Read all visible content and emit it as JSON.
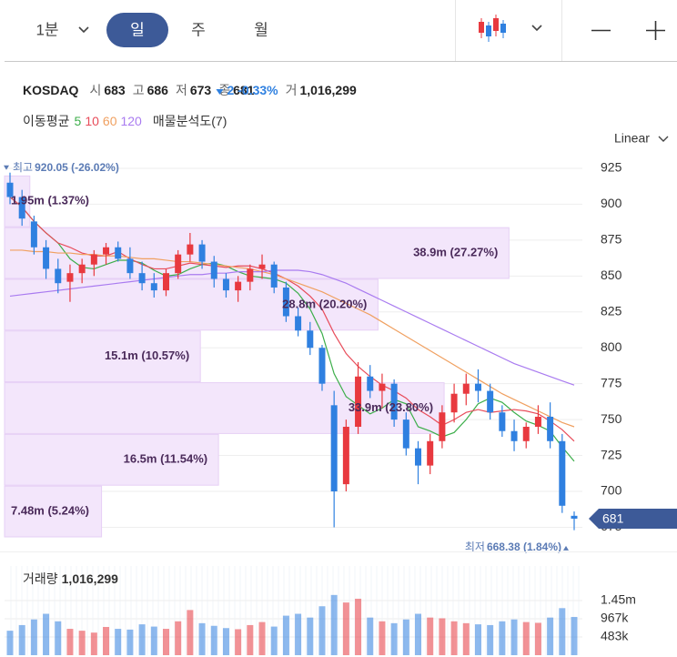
{
  "toolbar": {
    "intervals": [
      "1분",
      "일",
      "주",
      "월"
    ],
    "selected": 1
  },
  "quote": {
    "name": "KOSDAQ",
    "items": [
      {
        "label": "시",
        "value": 683
      },
      {
        "label": "고",
        "value": 686
      },
      {
        "label": "저",
        "value": 673
      },
      {
        "label": "종",
        "value": 681
      }
    ],
    "change": 2,
    "change_pct": "-0.33%",
    "volume_label": "거",
    "volume": "1,016,299"
  },
  "chart_data": {
    "type": "candlestick",
    "ylim": [
      668,
      935
    ],
    "yticks": [
      675,
      700,
      725,
      750,
      775,
      800,
      825,
      850,
      875,
      900,
      925
    ],
    "grid": true,
    "scale_label": "Linear",
    "up_color": "#e8393f",
    "down_color": "#2f80e0",
    "open": [
      915,
      905,
      888,
      870,
      855,
      846,
      852,
      858,
      865,
      870,
      862,
      852,
      845,
      840,
      852,
      865,
      872,
      860,
      848,
      840,
      846,
      855,
      858,
      842,
      822,
      812,
      800,
      760,
      705,
      745,
      780,
      770,
      775,
      750,
      730,
      718,
      735,
      755,
      768,
      775,
      770,
      755,
      742,
      735,
      745,
      752,
      735,
      683
    ],
    "high": [
      922,
      910,
      892,
      875,
      862,
      858,
      862,
      868,
      873,
      874,
      870,
      860,
      852,
      855,
      868,
      880,
      875,
      864,
      852,
      850,
      858,
      865,
      860,
      846,
      828,
      818,
      802,
      770,
      750,
      790,
      788,
      782,
      778,
      755,
      735,
      740,
      760,
      775,
      782,
      785,
      775,
      760,
      750,
      748,
      760,
      762,
      740,
      686
    ],
    "low": [
      900,
      885,
      865,
      848,
      838,
      832,
      845,
      850,
      858,
      860,
      848,
      840,
      835,
      836,
      848,
      860,
      855,
      842,
      835,
      832,
      840,
      848,
      838,
      818,
      808,
      795,
      770,
      675,
      700,
      740,
      765,
      758,
      745,
      725,
      705,
      712,
      730,
      748,
      760,
      762,
      750,
      738,
      728,
      730,
      740,
      730,
      685,
      673
    ],
    "close": [
      905,
      890,
      870,
      855,
      845,
      852,
      858,
      865,
      870,
      862,
      852,
      845,
      840,
      852,
      865,
      872,
      860,
      848,
      840,
      846,
      855,
      858,
      842,
      822,
      812,
      800,
      775,
      700,
      745,
      780,
      770,
      775,
      750,
      730,
      718,
      735,
      755,
      768,
      775,
      770,
      755,
      742,
      735,
      745,
      752,
      735,
      690,
      681
    ],
    "ma_title": "이동평균",
    "ma": [
      {
        "name": "5",
        "color": "#3cae4a",
        "values": [
          905,
          898,
          888,
          880,
          873,
          862,
          856,
          855,
          858,
          861,
          861,
          859,
          854,
          850,
          851,
          855,
          858,
          859,
          857,
          853,
          850,
          849,
          848,
          845,
          838,
          827,
          810,
          782,
          766,
          760,
          754,
          758,
          764,
          761,
          745,
          742,
          738,
          741,
          750,
          761,
          765,
          762,
          755,
          749,
          746,
          742,
          731,
          721
        ]
      },
      {
        "name": "10",
        "color": "#e84c5a",
        "values": [
          905,
          898,
          888,
          880,
          873,
          870,
          866,
          864,
          864,
          867,
          862,
          858,
          855,
          855,
          857,
          859,
          858,
          857,
          856,
          857,
          857,
          855,
          852,
          848,
          843,
          836,
          827,
          810,
          796,
          787,
          780,
          774,
          770,
          765,
          757,
          752,
          746,
          750,
          755,
          757,
          755,
          756,
          757,
          756,
          754,
          749,
          743,
          735
        ]
      },
      {
        "name": "60",
        "color": "#f0a060",
        "values": [
          868,
          868,
          867,
          867,
          866,
          866,
          865,
          865,
          864,
          864,
          863,
          862,
          862,
          861,
          860,
          860,
          859,
          858,
          857,
          856,
          855,
          853,
          851,
          848,
          845,
          842,
          839,
          835,
          831,
          827,
          823,
          818,
          813,
          808,
          803,
          798,
          793,
          788,
          783,
          778,
          773,
          768,
          764,
          760,
          756,
          752,
          748,
          745
        ]
      },
      {
        "name": "120",
        "color": "#a97bf0",
        "values": [
          836,
          837,
          838,
          839,
          840,
          841,
          842,
          843,
          844,
          845,
          846,
          847,
          848,
          849,
          850,
          851,
          851,
          852,
          852,
          853,
          853,
          853,
          854,
          854,
          854,
          853,
          851,
          848,
          845,
          841,
          837,
          833,
          829,
          825,
          821,
          817,
          813,
          809,
          805,
          801,
          797,
          793,
          789,
          786,
          783,
          780,
          777,
          774
        ]
      }
    ],
    "profile": {
      "legend": "매물분석도(7)",
      "color": "#f3e6fb",
      "xlim": [
        0,
        44
      ],
      "bands": [
        [
          884,
          920
        ],
        [
          848,
          884
        ],
        [
          812,
          848
        ],
        [
          776,
          812
        ],
        [
          740,
          776
        ],
        [
          704,
          740
        ],
        [
          668,
          704
        ]
      ],
      "values": [
        1.95,
        38.9,
        28.8,
        15.1,
        33.9,
        16.5,
        7.48
      ],
      "value_labels": [
        "1.95m (1.37%)",
        "38.9m (27.27%)",
        "28.8m (20.20%)",
        "15.1m (10.57%)",
        "33.9m (23.80%)",
        "16.5m (11.54%)",
        "7.48m (5.24%)"
      ]
    },
    "high_marker": {
      "label": "최고",
      "value": 920.05,
      "text": "920.05 (-26.02%)"
    },
    "low_marker": {
      "label": "최저",
      "value": 668.38,
      "text": "668.38 (1.84%)"
    },
    "last_price": 681,
    "volume": {
      "label": "거래량",
      "ylim": [
        0,
        2370000
      ],
      "yticks": [
        {
          "value": 483000,
          "label": "483k"
        },
        {
          "value": 967000,
          "label": "967k"
        },
        {
          "value": 1450000,
          "label": "1.45m"
        }
      ],
      "values": [
        650000,
        800000,
        950000,
        1100000,
        900000,
        700000,
        650000,
        600000,
        750000,
        700000,
        680000,
        820000,
        760000,
        700000,
        900000,
        1200000,
        850000,
        780000,
        720000,
        690000,
        800000,
        880000,
        760000,
        1050000,
        1100000,
        1000000,
        1300000,
        1600000,
        1400000,
        1500000,
        1000000,
        900000,
        850000,
        950000,
        1100000,
        1000000,
        980000,
        900000,
        850000,
        820000,
        800000,
        900000,
        950000,
        880000,
        860000,
        1000000,
        1250000,
        1016299
      ]
    }
  }
}
